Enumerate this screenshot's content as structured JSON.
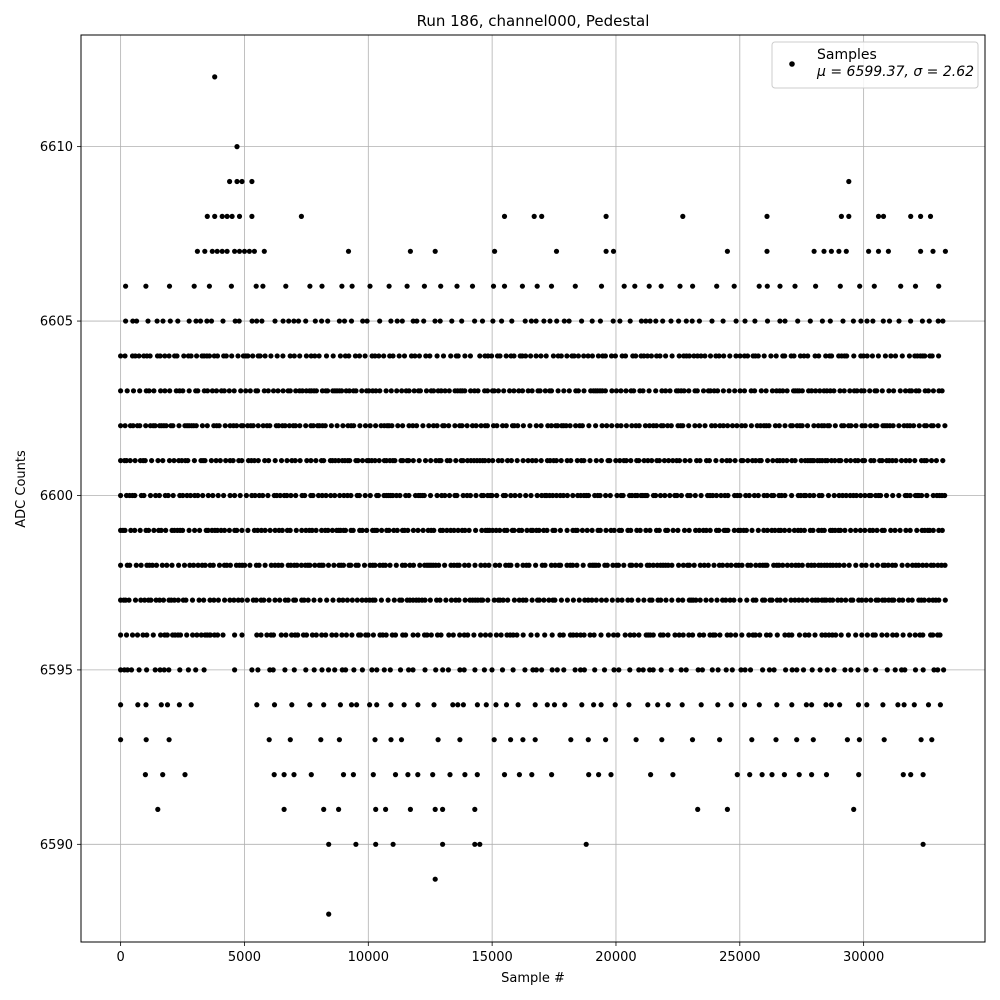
{
  "chart_data": {
    "type": "scatter",
    "title": "Run 186, channel000, Pedestal",
    "xlabel": "Sample #",
    "ylabel": "ADC Counts",
    "xlim": [
      -1600,
      34900
    ],
    "ylim": [
      6587.2,
      6613.2
    ],
    "xticks": [
      0,
      5000,
      10000,
      15000,
      20000,
      25000,
      30000
    ],
    "yticks": [
      6590,
      6595,
      6600,
      6605,
      6610
    ],
    "grid": true,
    "legend_position": "top-right",
    "marker_color": "#000000",
    "series": [
      {
        "name": "Samples",
        "legend_stat_line": "μ = 6599.37, σ = 2.62",
        "bands": [
          {
            "y": 6593,
            "segments": [
              [
                0,
                3100
              ],
              [
                6000,
                33300
              ]
            ],
            "density": 0.18
          },
          {
            "y": 6594,
            "segments": [
              [
                0,
                3100
              ],
              [
                5500,
                33300
              ]
            ],
            "density": 0.35
          },
          {
            "y": 6595,
            "segments": [
              [
                0,
                3500
              ],
              [
                5300,
                33300
              ]
            ],
            "density": 0.55
          },
          {
            "y": 6596,
            "segments": [
              [
                0,
                4200
              ],
              [
                5500,
                33300
              ]
            ],
            "density": 0.85
          },
          {
            "y": 6597,
            "segments": [
              [
                0,
                33300
              ]
            ],
            "density": 1
          },
          {
            "y": 6598,
            "segments": [
              [
                0,
                33300
              ]
            ],
            "density": 1
          },
          {
            "y": 6599,
            "segments": [
              [
                0,
                33300
              ]
            ],
            "density": 1
          },
          {
            "y": 6600,
            "segments": [
              [
                0,
                33300
              ]
            ],
            "density": 1
          },
          {
            "y": 6601,
            "segments": [
              [
                0,
                33300
              ]
            ],
            "density": 1
          },
          {
            "y": 6602,
            "segments": [
              [
                0,
                33300
              ]
            ],
            "density": 1
          },
          {
            "y": 6603,
            "segments": [
              [
                0,
                33300
              ]
            ],
            "density": 1
          },
          {
            "y": 6604,
            "segments": [
              [
                0,
                14300
              ],
              [
                14500,
                33300
              ]
            ],
            "density": 0.9
          },
          {
            "y": 6605,
            "segments": [
              [
                200,
                33300
              ]
            ],
            "density": 0.5
          },
          {
            "y": 6606,
            "segments": [
              [
                200,
                33300
              ]
            ],
            "density": 0.25
          }
        ],
        "points": [
          [
            3800,
            6612
          ],
          [
            4700,
            6610
          ],
          [
            4400,
            6609
          ],
          [
            4700,
            6609
          ],
          [
            4900,
            6609
          ],
          [
            5300,
            6609
          ],
          [
            29400,
            6609
          ],
          [
            3500,
            6608
          ],
          [
            3800,
            6608
          ],
          [
            4100,
            6608
          ],
          [
            4300,
            6608
          ],
          [
            4500,
            6608
          ],
          [
            4800,
            6608
          ],
          [
            5300,
            6608
          ],
          [
            7300,
            6608
          ],
          [
            15500,
            6608
          ],
          [
            16700,
            6608
          ],
          [
            17000,
            6608
          ],
          [
            19600,
            6608
          ],
          [
            22700,
            6608
          ],
          [
            26100,
            6608
          ],
          [
            29100,
            6608
          ],
          [
            29400,
            6608
          ],
          [
            30600,
            6608
          ],
          [
            30800,
            6608
          ],
          [
            31900,
            6608
          ],
          [
            32300,
            6608
          ],
          [
            32700,
            6608
          ],
          [
            3100,
            6607
          ],
          [
            3400,
            6607
          ],
          [
            3700,
            6607
          ],
          [
            3900,
            6607
          ],
          [
            4100,
            6607
          ],
          [
            4300,
            6607
          ],
          [
            4600,
            6607
          ],
          [
            4800,
            6607
          ],
          [
            5000,
            6607
          ],
          [
            5200,
            6607
          ],
          [
            5400,
            6607
          ],
          [
            5800,
            6607
          ],
          [
            9200,
            6607
          ],
          [
            11700,
            6607
          ],
          [
            12700,
            6607
          ],
          [
            15100,
            6607
          ],
          [
            17600,
            6607
          ],
          [
            19600,
            6607
          ],
          [
            19900,
            6607
          ],
          [
            24500,
            6607
          ],
          [
            26100,
            6607
          ],
          [
            28000,
            6607
          ],
          [
            28400,
            6607
          ],
          [
            28700,
            6607
          ],
          [
            29000,
            6607
          ],
          [
            29300,
            6607
          ],
          [
            30200,
            6607
          ],
          [
            30600,
            6607
          ],
          [
            31000,
            6607
          ],
          [
            32300,
            6607
          ],
          [
            32800,
            6607
          ],
          [
            33300,
            6607
          ],
          [
            2600,
            6592
          ],
          [
            1000,
            6592
          ],
          [
            1700,
            6592
          ],
          [
            6200,
            6592
          ],
          [
            6600,
            6592
          ],
          [
            7000,
            6592
          ],
          [
            7700,
            6592
          ],
          [
            9000,
            6592
          ],
          [
            9400,
            6592
          ],
          [
            10200,
            6592
          ],
          [
            11100,
            6592
          ],
          [
            11600,
            6592
          ],
          [
            12000,
            6592
          ],
          [
            12600,
            6592
          ],
          [
            13300,
            6592
          ],
          [
            13900,
            6592
          ],
          [
            14400,
            6592
          ],
          [
            15500,
            6592
          ],
          [
            16100,
            6592
          ],
          [
            16600,
            6592
          ],
          [
            17400,
            6592
          ],
          [
            18900,
            6592
          ],
          [
            19300,
            6592
          ],
          [
            19800,
            6592
          ],
          [
            21400,
            6592
          ],
          [
            22300,
            6592
          ],
          [
            24900,
            6592
          ],
          [
            25400,
            6592
          ],
          [
            25900,
            6592
          ],
          [
            26300,
            6592
          ],
          [
            26800,
            6592
          ],
          [
            27400,
            6592
          ],
          [
            27900,
            6592
          ],
          [
            28500,
            6592
          ],
          [
            29800,
            6592
          ],
          [
            31600,
            6592
          ],
          [
            31900,
            6592
          ],
          [
            32400,
            6592
          ],
          [
            1500,
            6591
          ],
          [
            6600,
            6591
          ],
          [
            8200,
            6591
          ],
          [
            8800,
            6591
          ],
          [
            10300,
            6591
          ],
          [
            10700,
            6591
          ],
          [
            11700,
            6591
          ],
          [
            12700,
            6591
          ],
          [
            13000,
            6591
          ],
          [
            14300,
            6591
          ],
          [
            23300,
            6591
          ],
          [
            24500,
            6591
          ],
          [
            29600,
            6591
          ],
          [
            8400,
            6590
          ],
          [
            9500,
            6590
          ],
          [
            10300,
            6590
          ],
          [
            11000,
            6590
          ],
          [
            13000,
            6590
          ],
          [
            14300,
            6590
          ],
          [
            14500,
            6590
          ],
          [
            18800,
            6590
          ],
          [
            32400,
            6590
          ],
          [
            12700,
            6589
          ],
          [
            8400,
            6588
          ],
          [
            4600,
            6595
          ],
          [
            3600,
            6596
          ],
          [
            4600,
            6596
          ],
          [
            4900,
            6596
          ]
        ]
      }
    ]
  }
}
